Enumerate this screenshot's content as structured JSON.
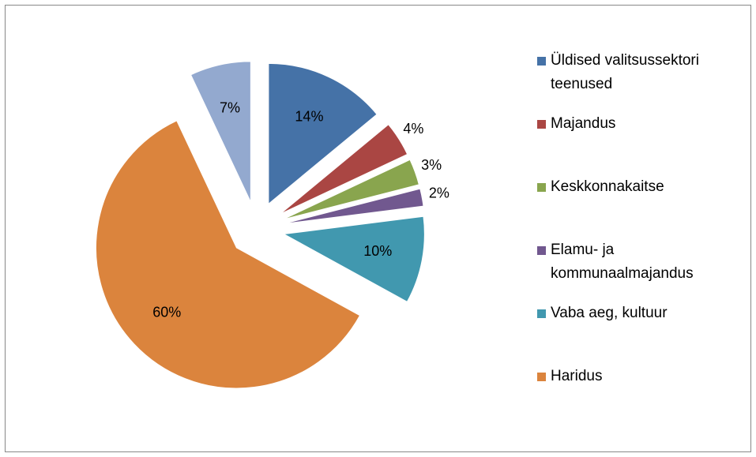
{
  "chart_data": {
    "type": "pie",
    "categories": [
      "Üldised valitsussektori teenused",
      "Majandus",
      "Keskkonnakaitse",
      "Elamu- ja kommunaalmajandus",
      "Vaba aeg, kultuur",
      "Haridus",
      null
    ],
    "values": [
      14,
      4,
      3,
      2,
      10,
      60,
      7
    ],
    "value_labels": [
      "14%",
      "4%",
      "3%",
      "2%",
      "10%",
      "60%",
      "7%"
    ],
    "colors": [
      "#4572a7",
      "#aa4643",
      "#89a54e",
      "#71588f",
      "#4198af",
      "#db843d",
      "#93a9cf"
    ],
    "legend": "right"
  }
}
